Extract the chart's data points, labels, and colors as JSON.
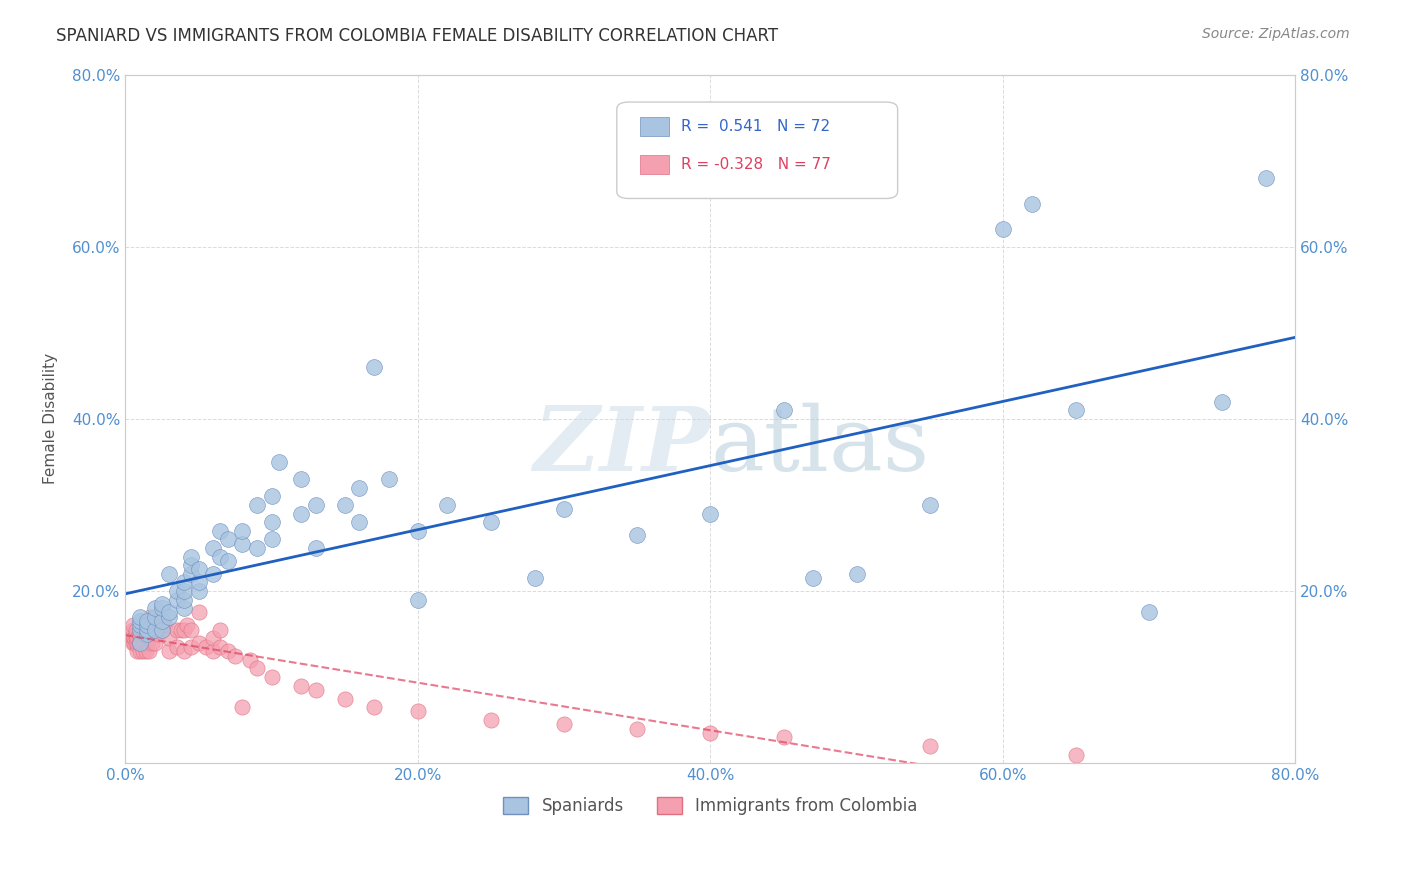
{
  "title": "SPANIARD VS IMMIGRANTS FROM COLOMBIA FEMALE DISABILITY CORRELATION CHART",
  "source": "Source: ZipAtlas.com",
  "xlabel_bottom": "",
  "ylabel": "Female Disability",
  "xlim": [
    0.0,
    0.8
  ],
  "ylim": [
    0.0,
    0.8
  ],
  "xticks": [
    0.0,
    0.2,
    0.4,
    0.6,
    0.8
  ],
  "yticks": [
    0.0,
    0.2,
    0.4,
    0.6,
    0.8
  ],
  "xticklabels": [
    "0.0%",
    "20.0%",
    "40.0%",
    "60.0%",
    "80.0%"
  ],
  "yticklabels": [
    "",
    "20.0%",
    "40.0%",
    "60.0%",
    "80.0%"
  ],
  "right_yticklabels": [
    "80.0%",
    "60.0%",
    "40.0%",
    "20.0%",
    ""
  ],
  "spaniard_color": "#a8c4e0",
  "colombia_color": "#f4a0b0",
  "spaniard_line_color": "#2060c0",
  "colombia_line_color": "#e04060",
  "spaniard_R": 0.541,
  "spaniard_N": 72,
  "colombia_R": -0.328,
  "colombia_N": 77,
  "watermark": "ZIPatlas",
  "watermark_color": "#c8d8e8",
  "background_color": "#ffffff",
  "grid_color": "#cccccc",
  "tick_color": "#5090d0",
  "title_color": "#333333",
  "legend_label_spaniards": "Spaniards",
  "legend_label_colombia": "Immigrants from Colombia",
  "spaniard_points_x": [
    0.01,
    0.01,
    0.01,
    0.01,
    0.01,
    0.015,
    0.015,
    0.015,
    0.015,
    0.02,
    0.02,
    0.02,
    0.025,
    0.025,
    0.025,
    0.025,
    0.03,
    0.03,
    0.03,
    0.035,
    0.035,
    0.04,
    0.04,
    0.04,
    0.04,
    0.045,
    0.045,
    0.045,
    0.05,
    0.05,
    0.05,
    0.06,
    0.06,
    0.065,
    0.065,
    0.07,
    0.07,
    0.08,
    0.08,
    0.09,
    0.09,
    0.1,
    0.1,
    0.1,
    0.105,
    0.12,
    0.12,
    0.13,
    0.13,
    0.15,
    0.16,
    0.16,
    0.17,
    0.18,
    0.2,
    0.2,
    0.22,
    0.25,
    0.28,
    0.3,
    0.35,
    0.4,
    0.45,
    0.47,
    0.5,
    0.55,
    0.6,
    0.62,
    0.65,
    0.7,
    0.75,
    0.78
  ],
  "spaniard_points_y": [
    0.14,
    0.155,
    0.16,
    0.165,
    0.17,
    0.15,
    0.155,
    0.16,
    0.165,
    0.155,
    0.17,
    0.18,
    0.155,
    0.165,
    0.18,
    0.185,
    0.17,
    0.175,
    0.22,
    0.19,
    0.2,
    0.18,
    0.19,
    0.2,
    0.21,
    0.22,
    0.23,
    0.24,
    0.2,
    0.21,
    0.225,
    0.22,
    0.25,
    0.24,
    0.27,
    0.235,
    0.26,
    0.255,
    0.27,
    0.25,
    0.3,
    0.26,
    0.28,
    0.31,
    0.35,
    0.29,
    0.33,
    0.3,
    0.25,
    0.3,
    0.28,
    0.32,
    0.46,
    0.33,
    0.19,
    0.27,
    0.3,
    0.28,
    0.215,
    0.295,
    0.265,
    0.29,
    0.41,
    0.215,
    0.22,
    0.3,
    0.62,
    0.65,
    0.41,
    0.175,
    0.42,
    0.68
  ],
  "colombia_points_x": [
    0.005,
    0.005,
    0.005,
    0.005,
    0.005,
    0.006,
    0.006,
    0.007,
    0.007,
    0.007,
    0.007,
    0.008,
    0.008,
    0.008,
    0.009,
    0.009,
    0.01,
    0.01,
    0.01,
    0.012,
    0.012,
    0.013,
    0.013,
    0.014,
    0.014,
    0.015,
    0.015,
    0.015,
    0.016,
    0.016,
    0.017,
    0.017,
    0.018,
    0.018,
    0.019,
    0.02,
    0.02,
    0.022,
    0.022,
    0.025,
    0.025,
    0.027,
    0.03,
    0.03,
    0.035,
    0.035,
    0.038,
    0.04,
    0.04,
    0.042,
    0.045,
    0.045,
    0.05,
    0.05,
    0.055,
    0.06,
    0.06,
    0.065,
    0.065,
    0.07,
    0.075,
    0.08,
    0.085,
    0.09,
    0.1,
    0.12,
    0.13,
    0.15,
    0.17,
    0.2,
    0.25,
    0.3,
    0.35,
    0.4,
    0.45,
    0.55,
    0.65
  ],
  "colombia_points_y": [
    0.14,
    0.145,
    0.148,
    0.155,
    0.16,
    0.14,
    0.145,
    0.14,
    0.145,
    0.15,
    0.155,
    0.13,
    0.14,
    0.145,
    0.14,
    0.15,
    0.13,
    0.14,
    0.15,
    0.13,
    0.155,
    0.14,
    0.15,
    0.13,
    0.155,
    0.14,
    0.145,
    0.155,
    0.13,
    0.145,
    0.155,
    0.17,
    0.14,
    0.155,
    0.165,
    0.14,
    0.155,
    0.15,
    0.165,
    0.155,
    0.16,
    0.16,
    0.13,
    0.145,
    0.135,
    0.155,
    0.155,
    0.13,
    0.155,
    0.16,
    0.135,
    0.155,
    0.14,
    0.175,
    0.135,
    0.13,
    0.145,
    0.135,
    0.155,
    0.13,
    0.125,
    0.065,
    0.12,
    0.11,
    0.1,
    0.09,
    0.085,
    0.075,
    0.065,
    0.06,
    0.05,
    0.045,
    0.04,
    0.035,
    0.03,
    0.02,
    0.01
  ]
}
